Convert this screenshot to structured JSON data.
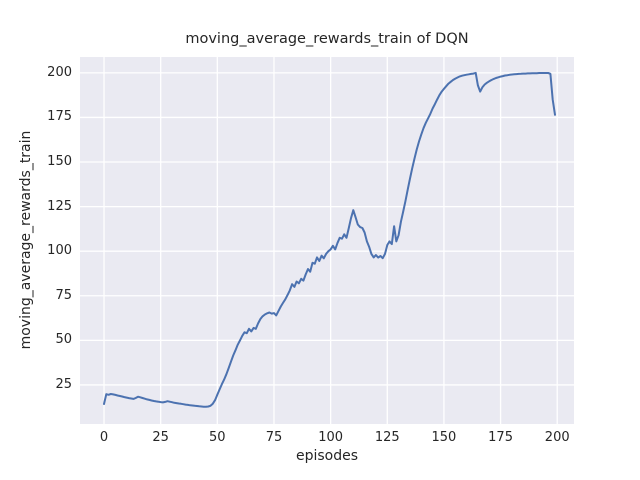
{
  "chart_data": {
    "type": "line",
    "title": "moving_average_rewards_train of DQN",
    "xlabel": "episodes",
    "ylabel": "moving_average_rewards_train",
    "grid": true,
    "legend_position": "none",
    "x_start": 0,
    "x_step": 1,
    "xticks": [
      0,
      25,
      50,
      75,
      100,
      125,
      150,
      175,
      200
    ],
    "yticks": [
      25,
      50,
      75,
      100,
      125,
      150,
      175,
      200
    ],
    "xlim": [
      -10.6,
      207.4
    ],
    "ylim": [
      3.1,
      208.9
    ],
    "series_name": "moving_average_rewards_train",
    "values": [
      14.3,
      19.8,
      19.5,
      19.9,
      19.7,
      19.4,
      19.1,
      18.8,
      18.5,
      18.2,
      17.9,
      17.6,
      17.4,
      17.2,
      17.7,
      18.4,
      18.1,
      17.7,
      17.3,
      16.9,
      16.6,
      16.3,
      16.0,
      15.8,
      15.6,
      15.4,
      15.2,
      15.5,
      15.9,
      15.6,
      15.3,
      15.0,
      14.8,
      14.6,
      14.4,
      14.2,
      14.0,
      13.8,
      13.6,
      13.5,
      13.3,
      13.2,
      13.0,
      12.9,
      12.8,
      12.8,
      12.9,
      13.3,
      14.5,
      16.5,
      19.5,
      22.5,
      25.5,
      28.0,
      31.0,
      34.5,
      38.0,
      41.5,
      44.5,
      47.5,
      50.0,
      52.5,
      54.5,
      54.0,
      56.5,
      55.0,
      57.0,
      56.5,
      59.5,
      62.0,
      63.5,
      64.5,
      65.2,
      65.6,
      65.0,
      65.3,
      64.0,
      66.5,
      69.0,
      71.0,
      73.0,
      75.5,
      78.0,
      81.5,
      80.0,
      83.0,
      82.0,
      84.5,
      83.5,
      87.0,
      90.0,
      88.5,
      93.5,
      93.0,
      96.5,
      94.5,
      97.5,
      96.0,
      98.5,
      100.0,
      101.0,
      103.0,
      101.0,
      104.5,
      107.5,
      107.0,
      109.5,
      107.5,
      113.0,
      118.5,
      123.0,
      119.0,
      115.0,
      113.5,
      113.0,
      110.5,
      105.5,
      102.5,
      98.5,
      96.5,
      97.8,
      96.4,
      97.3,
      96.1,
      98.5,
      103.5,
      105.5,
      104.0,
      114.0,
      105.5,
      109.0,
      116.5,
      122.0,
      128.0,
      134.5,
      140.5,
      146.5,
      152.0,
      157.0,
      161.5,
      165.5,
      169.0,
      172.0,
      174.5,
      177.0,
      180.0,
      182.5,
      185.0,
      187.5,
      189.5,
      191.0,
      192.5,
      194.0,
      195.0,
      196.0,
      196.8,
      197.4,
      198.0,
      198.4,
      198.7,
      199.0,
      199.2,
      199.4,
      199.6,
      200.0,
      193.0,
      189.5,
      192.0,
      193.5,
      194.5,
      195.3,
      196.0,
      196.6,
      197.1,
      197.5,
      197.9,
      198.2,
      198.5,
      198.7,
      198.9,
      199.1,
      199.2,
      199.3,
      199.4,
      199.5,
      199.6,
      199.6,
      199.7,
      199.7,
      199.8,
      199.8,
      199.8,
      199.9,
      199.9,
      199.9,
      199.9,
      199.9,
      199.5,
      185.0,
      176.5
    ],
    "style": {
      "line_color": "#4C72B0",
      "axes_background": "#EAEAF2",
      "grid_color": "#FFFFFF",
      "figure_background": "#FFFFFF",
      "text_color": "#262626"
    }
  }
}
